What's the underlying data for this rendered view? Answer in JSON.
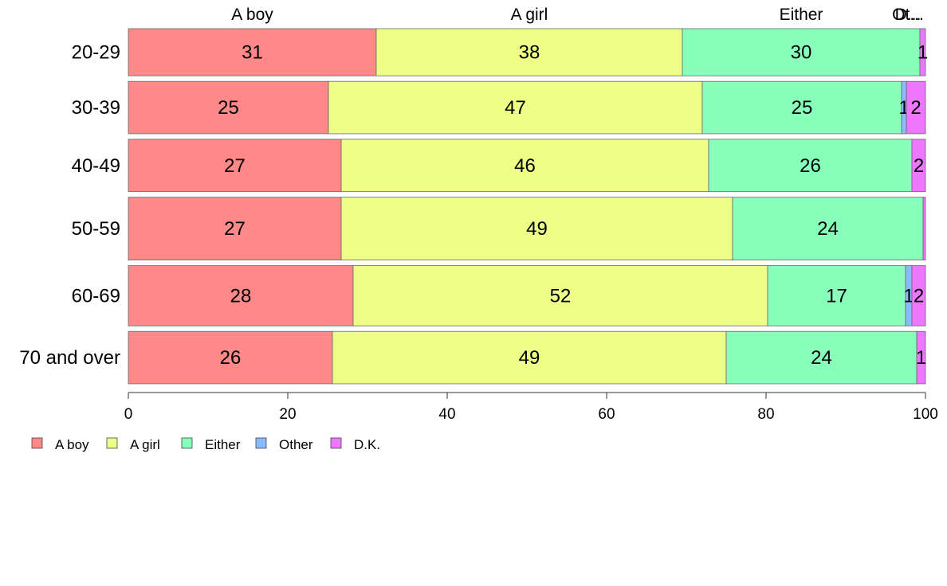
{
  "chart_data": {
    "type": "bar",
    "orientation": "horizontal",
    "stacked": true,
    "variable_width": true,
    "categories": [
      "20-29",
      "30-39",
      "40-49",
      "50-59",
      "60-69",
      "70 and over"
    ],
    "series": [
      {
        "name": "A boy",
        "color": "#ff8888",
        "values": [
          31.1,
          25.1,
          26.7,
          26.7,
          28.2,
          25.6
        ]
      },
      {
        "name": "A girl",
        "color": "#eeff88",
        "values": [
          38.4,
          46.9,
          46.1,
          49.1,
          52.0,
          49.4
        ]
      },
      {
        "name": "Either",
        "color": "#88ffbb",
        "values": [
          29.8,
          25.0,
          25.5,
          23.9,
          17.3,
          23.9
        ]
      },
      {
        "name": "Other",
        "color": "#88bbff",
        "values": [
          0.0,
          0.6,
          0.0,
          0.0,
          0.8,
          0.0
        ]
      },
      {
        "name": "D.K.",
        "color": "#ee77ff",
        "values": [
          0.7,
          2.4,
          1.7,
          0.3,
          1.7,
          1.1
        ]
      }
    ],
    "data_labels": [
      [
        "31",
        "38",
        "30",
        "",
        "1"
      ],
      [
        "25",
        "47",
        "25",
        "1",
        "2"
      ],
      [
        "27",
        "46",
        "26",
        "",
        "2"
      ],
      [
        "27",
        "49",
        "24",
        "",
        ""
      ],
      [
        "28",
        "52",
        "17",
        "1",
        "2"
      ],
      [
        "26",
        "49",
        "24",
        "",
        "1"
      ]
    ],
    "row_weights": [
      0.9,
      1.0,
      1.0,
      1.2,
      1.15,
      1.0
    ],
    "top_labels": [
      "A boy",
      "A girl",
      "Either",
      "Ot...",
      "D..."
    ],
    "xlim": [
      0,
      100
    ],
    "xticks": [
      0,
      20,
      40,
      60,
      80,
      100
    ],
    "xtick_labels": [
      "0",
      "20",
      "40",
      "60",
      "80",
      "100"
    ],
    "legend": {
      "placement": "bottom-left",
      "entries": [
        "A boy",
        "A girl",
        "Either",
        "Other",
        "D.K."
      ]
    },
    "grid": false
  }
}
